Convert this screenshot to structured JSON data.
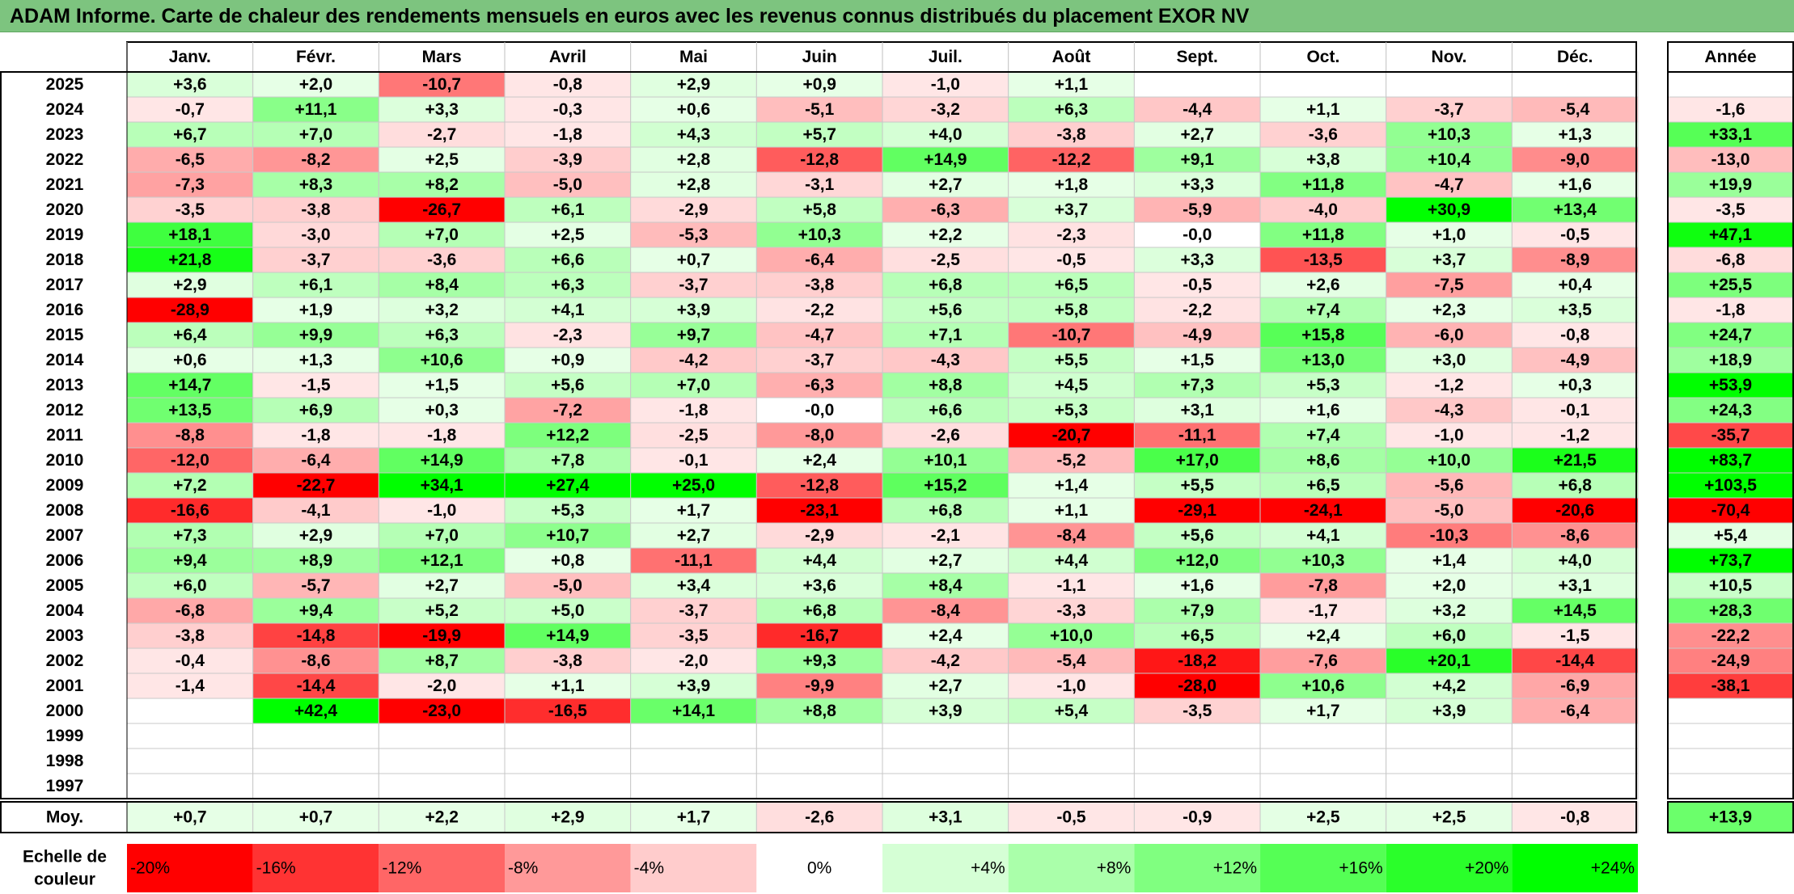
{
  "title": "ADAM Informe. Carte de chaleur des rendements mensuels en euros avec les revenus connus distribués du placement EXOR NV",
  "colors": {
    "title_bg": "#7dc47f",
    "max_red": "#ff0000",
    "max_green": "#00ff00",
    "neutral": "#ffffff"
  },
  "chart_data": {
    "type": "heatmap",
    "title": "ADAM Informe. Carte de chaleur des rendements mensuels en euros avec les revenus connus distribués du placement EXOR NV",
    "columns": [
      "Janv.",
      "Févr.",
      "Mars",
      "Avril",
      "Mai",
      "Juin",
      "Juil.",
      "Août",
      "Sept.",
      "Oct.",
      "Nov.",
      "Déc."
    ],
    "annual_header": "Année",
    "rows": [
      {
        "year": "2025",
        "values": [
          "+3,6",
          "+2,0",
          "-10,7",
          "-0,8",
          "+2,9",
          "+0,9",
          "-1,0",
          "+1,1",
          "",
          "",
          "",
          ""
        ],
        "annual": ""
      },
      {
        "year": "2024",
        "values": [
          "-0,7",
          "+11,1",
          "+3,3",
          "-0,3",
          "+0,6",
          "-5,1",
          "-3,2",
          "+6,3",
          "-4,4",
          "+1,1",
          "-3,7",
          "-5,4"
        ],
        "annual": "-1,6"
      },
      {
        "year": "2023",
        "values": [
          "+6,7",
          "+7,0",
          "-2,7",
          "-1,8",
          "+4,3",
          "+5,7",
          "+4,0",
          "-3,8",
          "+2,7",
          "-3,6",
          "+10,3",
          "+1,3"
        ],
        "annual": "+33,1"
      },
      {
        "year": "2022",
        "values": [
          "-6,5",
          "-8,2",
          "+2,5",
          "-3,9",
          "+2,8",
          "-12,8",
          "+14,9",
          "-12,2",
          "+9,1",
          "+3,8",
          "+10,4",
          "-9,0"
        ],
        "annual": "-13,0"
      },
      {
        "year": "2021",
        "values": [
          "-7,3",
          "+8,3",
          "+8,2",
          "-5,0",
          "+2,8",
          "-3,1",
          "+2,7",
          "+1,8",
          "+3,3",
          "+11,8",
          "-4,7",
          "+1,6"
        ],
        "annual": "+19,9"
      },
      {
        "year": "2020",
        "values": [
          "-3,5",
          "-3,8",
          "-26,7",
          "+6,1",
          "-2,9",
          "+5,8",
          "-6,3",
          "+3,7",
          "-5,9",
          "-4,0",
          "+30,9",
          "+13,4"
        ],
        "annual": "-3,5"
      },
      {
        "year": "2019",
        "values": [
          "+18,1",
          "-3,0",
          "+7,0",
          "+2,5",
          "-5,3",
          "+10,3",
          "+2,2",
          "-2,3",
          "-0,0",
          "+11,8",
          "+1,0",
          "-0,5"
        ],
        "annual": "+47,1"
      },
      {
        "year": "2018",
        "values": [
          "+21,8",
          "-3,7",
          "-3,6",
          "+6,6",
          "+0,7",
          "-6,4",
          "-2,5",
          "-0,5",
          "+3,3",
          "-13,5",
          "+3,7",
          "-8,9"
        ],
        "annual": "-6,8"
      },
      {
        "year": "2017",
        "values": [
          "+2,9",
          "+6,1",
          "+8,4",
          "+6,3",
          "-3,7",
          "-3,8",
          "+6,8",
          "+6,5",
          "-0,5",
          "+2,6",
          "-7,5",
          "+0,4"
        ],
        "annual": "+25,5"
      },
      {
        "year": "2016",
        "values": [
          "-28,9",
          "+1,9",
          "+3,2",
          "+4,1",
          "+3,9",
          "-2,2",
          "+5,6",
          "+5,8",
          "-2,2",
          "+7,4",
          "+2,3",
          "+3,5"
        ],
        "annual": "-1,8"
      },
      {
        "year": "2015",
        "values": [
          "+6,4",
          "+9,9",
          "+6,3",
          "-2,3",
          "+9,7",
          "-4,7",
          "+7,1",
          "-10,7",
          "-4,9",
          "+15,8",
          "-6,0",
          "-0,8"
        ],
        "annual": "+24,7"
      },
      {
        "year": "2014",
        "values": [
          "+0,6",
          "+1,3",
          "+10,6",
          "+0,9",
          "-4,2",
          "-3,7",
          "-4,3",
          "+5,5",
          "+1,5",
          "+13,0",
          "+3,0",
          "-4,9"
        ],
        "annual": "+18,9"
      },
      {
        "year": "2013",
        "values": [
          "+14,7",
          "-1,5",
          "+1,5",
          "+5,6",
          "+7,0",
          "-6,3",
          "+8,8",
          "+4,5",
          "+7,3",
          "+5,3",
          "-1,2",
          "+0,3"
        ],
        "annual": "+53,9"
      },
      {
        "year": "2012",
        "values": [
          "+13,5",
          "+6,9",
          "+0,3",
          "-7,2",
          "-1,8",
          "-0,0",
          "+6,6",
          "+5,3",
          "+3,1",
          "+1,6",
          "-4,3",
          "-0,1"
        ],
        "annual": "+24,3"
      },
      {
        "year": "2011",
        "values": [
          "-8,8",
          "-1,8",
          "-1,8",
          "+12,2",
          "-2,5",
          "-8,0",
          "-2,6",
          "-20,7",
          "-11,1",
          "+7,4",
          "-1,0",
          "-1,2"
        ],
        "annual": "-35,7"
      },
      {
        "year": "2010",
        "values": [
          "-12,0",
          "-6,4",
          "+14,9",
          "+7,8",
          "-0,1",
          "+2,4",
          "+10,1",
          "-5,2",
          "+17,0",
          "+8,6",
          "+10,0",
          "+21,5"
        ],
        "annual": "+83,7"
      },
      {
        "year": "2009",
        "values": [
          "+7,2",
          "-22,7",
          "+34,1",
          "+27,4",
          "+25,0",
          "-12,8",
          "+15,2",
          "+1,4",
          "+5,5",
          "+6,5",
          "-5,6",
          "+6,8"
        ],
        "annual": "+103,5"
      },
      {
        "year": "2008",
        "values": [
          "-16,6",
          "-4,1",
          "-1,0",
          "+5,3",
          "+1,7",
          "-23,1",
          "+6,8",
          "+1,1",
          "-29,1",
          "-24,1",
          "-5,0",
          "-20,6"
        ],
        "annual": "-70,4"
      },
      {
        "year": "2007",
        "values": [
          "+7,3",
          "+2,9",
          "+7,0",
          "+10,7",
          "+2,7",
          "-2,9",
          "-2,1",
          "-8,4",
          "+5,6",
          "+4,1",
          "-10,3",
          "-8,6"
        ],
        "annual": "+5,4"
      },
      {
        "year": "2006",
        "values": [
          "+9,4",
          "+8,9",
          "+12,1",
          "+0,8",
          "-11,1",
          "+4,4",
          "+2,7",
          "+4,4",
          "+12,0",
          "+10,3",
          "+1,4",
          "+4,0"
        ],
        "annual": "+73,7"
      },
      {
        "year": "2005",
        "values": [
          "+6,0",
          "-5,7",
          "+2,7",
          "-5,0",
          "+3,4",
          "+3,6",
          "+8,4",
          "-1,1",
          "+1,6",
          "-7,8",
          "+2,0",
          "+3,1"
        ],
        "annual": "+10,5"
      },
      {
        "year": "2004",
        "values": [
          "-6,8",
          "+9,4",
          "+5,2",
          "+5,0",
          "-3,7",
          "+6,8",
          "-8,4",
          "-3,3",
          "+7,9",
          "-1,7",
          "+3,2",
          "+14,5"
        ],
        "annual": "+28,3"
      },
      {
        "year": "2003",
        "values": [
          "-3,8",
          "-14,8",
          "-19,9",
          "+14,9",
          "-3,5",
          "-16,7",
          "+2,4",
          "+10,0",
          "+6,5",
          "+2,4",
          "+6,0",
          "-1,5"
        ],
        "annual": "-22,2"
      },
      {
        "year": "2002",
        "values": [
          "-0,4",
          "-8,6",
          "+8,7",
          "-3,8",
          "-2,0",
          "+9,3",
          "-4,2",
          "-5,4",
          "-18,2",
          "-7,6",
          "+20,1",
          "-14,4"
        ],
        "annual": "-24,9"
      },
      {
        "year": "2001",
        "values": [
          "-1,4",
          "-14,4",
          "-2,0",
          "+1,1",
          "+3,9",
          "-9,9",
          "+2,7",
          "-1,0",
          "-28,0",
          "+10,6",
          "+4,2",
          "-6,9"
        ],
        "annual": "-38,1"
      },
      {
        "year": "2000",
        "values": [
          "",
          "+42,4",
          "-23,0",
          "-16,5",
          "+14,1",
          "+8,8",
          "+3,9",
          "+5,4",
          "-3,5",
          "+1,7",
          "+3,9",
          "-6,4"
        ],
        "annual": ""
      },
      {
        "year": "1999",
        "values": [
          "",
          "",
          "",
          "",
          "",
          "",
          "",
          "",
          "",
          "",
          "",
          ""
        ],
        "annual": ""
      },
      {
        "year": "1998",
        "values": [
          "",
          "",
          "",
          "",
          "",
          "",
          "",
          "",
          "",
          "",
          "",
          ""
        ],
        "annual": ""
      },
      {
        "year": "1997",
        "values": [
          "",
          "",
          "",
          "",
          "",
          "",
          "",
          "",
          "",
          "",
          "",
          ""
        ],
        "annual": ""
      }
    ],
    "average": {
      "label": "Moy.",
      "values": [
        "+0,7",
        "+0,7",
        "+2,2",
        "+2,9",
        "+1,7",
        "-2,6",
        "+3,1",
        "-0,5",
        "-0,9",
        "+2,5",
        "+2,5",
        "-0,8"
      ],
      "annual": "+13,9"
    },
    "scale": {
      "label_line1": "Echelle de",
      "label_line2": "couleur",
      "items": [
        {
          "label": "-20%",
          "value": -20
        },
        {
          "label": "-16%",
          "value": -16
        },
        {
          "label": "-12%",
          "value": -12
        },
        {
          "label": "-8%",
          "value": -8
        },
        {
          "label": "-4%",
          "value": -4
        },
        {
          "label": "0%",
          "value": 0
        },
        {
          "label": "+4%",
          "value": 4
        },
        {
          "label": "+8%",
          "value": 8
        },
        {
          "label": "+12%",
          "value": 12
        },
        {
          "label": "+16%",
          "value": 16
        },
        {
          "label": "+20%",
          "value": 20
        },
        {
          "label": "+24%",
          "value": 24
        }
      ]
    }
  }
}
